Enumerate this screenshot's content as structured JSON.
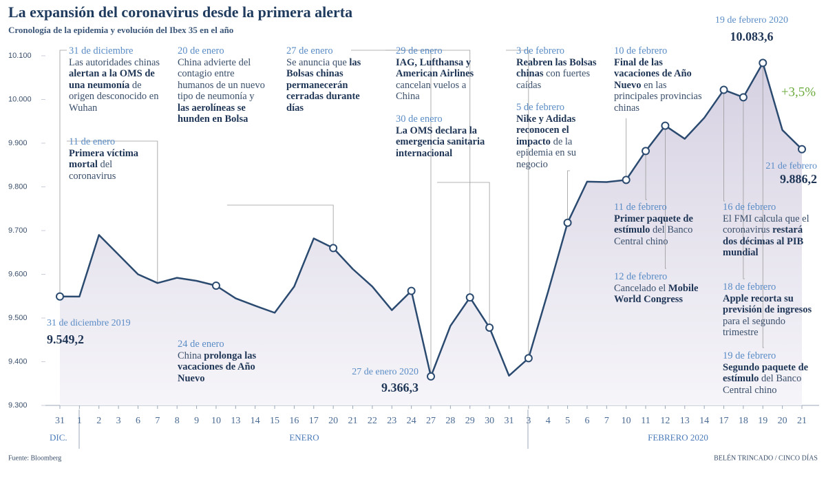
{
  "chart_data": {
    "type": "line",
    "title": "La expansión del coronavirus desde la primera alerta",
    "subtitle": "Cronología de la epidemia y evolución del Ibex 35 en el año",
    "source": "Fuente: Bloomberg",
    "credit": "BELÉN TRINCADO / CINCO DÍAS",
    "categories": [
      "31",
      "1",
      "2",
      "3",
      "6",
      "7",
      "8",
      "9",
      "10",
      "13",
      "14",
      "15",
      "16",
      "17",
      "20",
      "21",
      "22",
      "23",
      "24",
      "27",
      "28",
      "29",
      "30",
      "31",
      "3",
      "4",
      "5",
      "6",
      "7",
      "10",
      "11",
      "12",
      "13",
      "14",
      "17",
      "18",
      "19",
      "20",
      "21"
    ],
    "x_groups": [
      "DIC.",
      "ENERO",
      "FEBRERO 2020"
    ],
    "values": [
      9549.2,
      9549,
      9690,
      9645,
      9600,
      9580,
      9592,
      9585,
      9574,
      9545,
      9528,
      9512,
      9572,
      9682,
      9660,
      9612,
      9572,
      9518,
      9562,
      9366.3,
      9482,
      9547,
      9478,
      9368,
      9408,
      9560,
      9718,
      9812,
      9811,
      9816,
      9882,
      9940,
      9910,
      9958,
      10022,
      10005,
      10083.6,
      9930,
      9886.2
    ],
    "value_labels": [
      "9.549,2",
      null,
      null,
      null,
      null,
      null,
      null,
      null,
      null,
      null,
      null,
      null,
      null,
      null,
      null,
      null,
      null,
      null,
      null,
      "9.366,3",
      null,
      null,
      null,
      null,
      null,
      null,
      null,
      null,
      null,
      null,
      null,
      null,
      null,
      null,
      null,
      null,
      "10.083,6",
      null,
      "9.886,2"
    ],
    "value_label_titles": [
      "31 de diciembre 2019",
      null,
      null,
      null,
      null,
      null,
      null,
      null,
      null,
      null,
      null,
      null,
      null,
      null,
      null,
      null,
      null,
      null,
      null,
      "27 de enero 2020",
      null,
      null,
      null,
      null,
      null,
      null,
      null,
      null,
      null,
      null,
      null,
      null,
      null,
      null,
      null,
      null,
      "19 de febrero 2020",
      null,
      "21 de febrero"
    ],
    "change_label": "+3,5%",
    "color": "#2b4a70",
    "ylim": [
      9300,
      10100
    ],
    "yticks": [
      {
        "value": 9300,
        "label": "9.300"
      },
      {
        "value": 9400,
        "label": "9.400"
      },
      {
        "value": 9500,
        "label": "9.500"
      },
      {
        "value": 9600,
        "label": "9.600"
      },
      {
        "value": 9700,
        "label": "9.700"
      },
      {
        "value": 9800,
        "label": "9.800"
      },
      {
        "value": 9900,
        "label": "9.900"
      },
      {
        "value": 10000,
        "label": "10.000"
      },
      {
        "value": 10100,
        "label": "10.100"
      }
    ],
    "annotations": [
      {
        "date": "31 de diciembre",
        "text": [
          {
            "text": "Las autoridades chinas "
          },
          {
            "text": "alertan a la OMS de una neumonía",
            "bold": true
          },
          {
            "text": " de origen desconocido en Wuhan"
          }
        ]
      },
      {
        "date": "11 de enero",
        "text": [
          {
            "text": "Primera víctima mortal",
            "bold": true
          },
          {
            "text": " del coronavirus"
          }
        ]
      },
      {
        "date": "20 de enero",
        "text": [
          {
            "text": "China advierte del contagio entre humanos de un nuevo tipo de neumonía y "
          },
          {
            "text": "las aerolíneas se hunden en Bolsa",
            "bold": true
          }
        ]
      },
      {
        "date": "27 de enero",
        "text": [
          {
            "text": "Se anuncia que "
          },
          {
            "text": "las Bolsas chinas permanecerán cerradas durante días",
            "bold": true
          }
        ]
      },
      {
        "date": "29 de enero",
        "text": [
          {
            "text": "IAG, Lufthansa y American Airlines",
            "bold": true
          },
          {
            "text": " cancelan vuelos a China"
          }
        ]
      },
      {
        "date": "30 de enero",
        "text": [
          {
            "text": "La OMS declara la emergencia sanitaria internacional",
            "bold": true
          }
        ]
      },
      {
        "date": "3 de febrero",
        "text": [
          {
            "text": "Reabren las Bolsas chinas",
            "bold": true
          },
          {
            "text": " con fuertes caídas"
          }
        ]
      },
      {
        "date": "5 de febrero",
        "text": [
          {
            "text": "Nike y Adidas reconocen el impacto",
            "bold": true
          },
          {
            "text": " de la epidemia en su negocio"
          }
        ]
      },
      {
        "date": "10 de febrero",
        "text": [
          {
            "text": "Final de las vacaciones de Año Nuevo",
            "bold": true
          },
          {
            "text": " en las principales provincias chinas"
          }
        ]
      },
      {
        "date": "11 de febrero",
        "text": [
          {
            "text": "Primer paquete de estímulo",
            "bold": true
          },
          {
            "text": " del Banco Central chino"
          }
        ]
      },
      {
        "date": "12 de febrero",
        "text": [
          {
            "text": "Cancelado el "
          },
          {
            "text": "Mobile World Congress",
            "bold": true
          }
        ]
      },
      {
        "date": "16 de febrero",
        "text": [
          {
            "text": "El FMI calcula que el coronavirus "
          },
          {
            "text": "restará dos décimas al PIB mundial",
            "bold": true
          }
        ]
      },
      {
        "date": "18 de febrero",
        "text": [
          {
            "text": "Apple recorta su previsión de ingresos",
            "bold": true
          },
          {
            "text": " para el segundo trimestre"
          }
        ]
      },
      {
        "date": "19 de febrero",
        "text": [
          {
            "text": "Segundo paquete de estímulo",
            "bold": true
          },
          {
            "text": " del Banco Central chino"
          }
        ]
      },
      {
        "date": "24 de enero",
        "text": [
          {
            "text": "China "
          },
          {
            "text": "prolonga las vacaciones de Año Nuevo",
            "bold": true
          }
        ]
      }
    ]
  }
}
